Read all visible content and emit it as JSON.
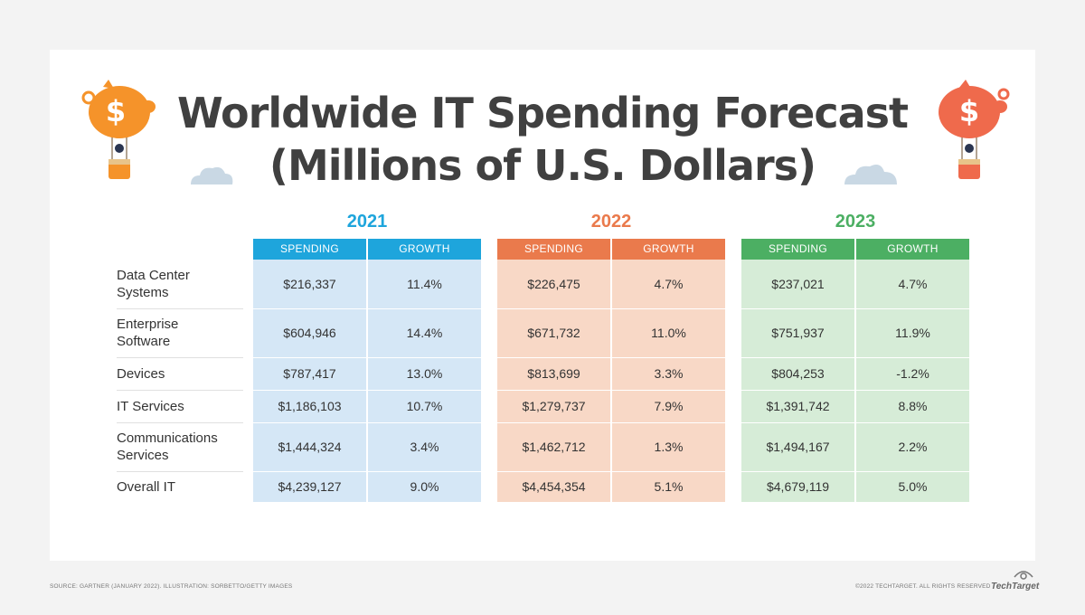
{
  "title_line1": "Worldwide IT Spending Forecast",
  "title_line2": "(Millions of U.S. Dollars)",
  "colors": {
    "y2021": "#1ea5dc",
    "y2022": "#ea7a4c",
    "y2023": "#4caf63",
    "band2021": "#d5e7f6",
    "band2022": "#f8d8c6",
    "band2023": "#d6ecd7"
  },
  "chart_data": {
    "type": "table",
    "title": "Worldwide IT Spending Forecast (Millions of U.S. Dollars)",
    "years": [
      "2021",
      "2022",
      "2023"
    ],
    "column_headers": [
      "SPENDING",
      "GROWTH"
    ],
    "rows": [
      {
        "label_lines": [
          "Data Center",
          "Systems"
        ],
        "values": [
          [
            "$216,337",
            "11.4%"
          ],
          [
            "$226,475",
            "4.7%"
          ],
          [
            "$237,021",
            "4.7%"
          ]
        ]
      },
      {
        "label_lines": [
          "Enterprise",
          "Software"
        ],
        "values": [
          [
            "$604,946",
            "14.4%"
          ],
          [
            "$671,732",
            "11.0%"
          ],
          [
            "$751,937",
            "11.9%"
          ]
        ]
      },
      {
        "label_lines": [
          "Devices"
        ],
        "values": [
          [
            "$787,417",
            "13.0%"
          ],
          [
            "$813,699",
            "3.3%"
          ],
          [
            "$804,253",
            "-1.2%"
          ]
        ]
      },
      {
        "label_lines": [
          "IT Services"
        ],
        "values": [
          [
            "$1,186,103",
            "10.7%"
          ],
          [
            "$1,279,737",
            "7.9%"
          ],
          [
            "$1,391,742",
            "8.8%"
          ]
        ]
      },
      {
        "label_lines": [
          "Communications",
          "Services"
        ],
        "values": [
          [
            "$1,444,324",
            "3.4%"
          ],
          [
            "$1,462,712",
            "1.3%"
          ],
          [
            "$1,494,167",
            "2.2%"
          ]
        ]
      },
      {
        "label_lines": [
          "Overall IT"
        ],
        "values": [
          [
            "$4,239,127",
            "9.0%"
          ],
          [
            "$4,454,354",
            "5.1%"
          ],
          [
            "$4,679,119",
            "5.0%"
          ]
        ]
      }
    ]
  },
  "footer": {
    "source": "SOURCE: GARTNER (JANUARY 2022). ILLUSTRATION: SORBETTO/GETTY IMAGES",
    "copyright": "©2022 TECHTARGET. ALL RIGHTS RESERVED",
    "brand": "TechTarget"
  }
}
